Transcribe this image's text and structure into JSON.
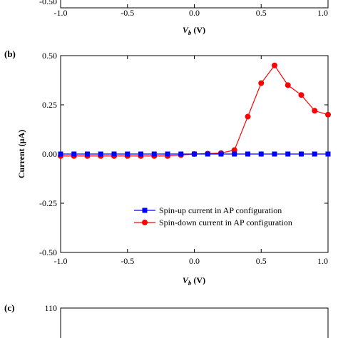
{
  "top_panel": {
    "x_ticks": [
      "-1.0",
      "-0.5",
      "0.0",
      "0.5",
      "1.0"
    ],
    "y_tick_partial": "-0.50",
    "xlabel_symbol": "V",
    "xlabel_sub": "b",
    "xlabel_unit": " (V)"
  },
  "chart_data": {
    "type": "line",
    "panel_label": "(b)",
    "title": "",
    "xlabel_symbol": "V",
    "xlabel_sub": "b",
    "xlabel_unit": " (V)",
    "ylabel": "Current (μA)",
    "xlim": [
      -1.0,
      1.0
    ],
    "ylim": [
      -0.5,
      0.5
    ],
    "x_ticks": [
      "-1.0",
      "-0.5",
      "0.0",
      "0.5",
      "1.0"
    ],
    "y_ticks": [
      "0.50",
      "0.25",
      "0.00",
      "-0.25",
      "-0.50"
    ],
    "y_tick_values": [
      0.5,
      0.25,
      0.0,
      -0.25,
      -0.5
    ],
    "x_tick_values": [
      -1.0,
      -0.5,
      0.0,
      0.5,
      1.0
    ],
    "grid": false,
    "legend_position": "bottom-right",
    "series": [
      {
        "name": "Spin-up current in AP configuration",
        "color": "#0000ff",
        "marker": "square",
        "x": [
          -1.0,
          -0.9,
          -0.8,
          -0.7,
          -0.6,
          -0.5,
          -0.4,
          -0.3,
          -0.2,
          -0.1,
          0.0,
          0.1,
          0.2,
          0.3,
          0.4,
          0.5,
          0.6,
          0.7,
          0.8,
          0.9,
          1.0
        ],
        "y": [
          0,
          0,
          0,
          0,
          0,
          0,
          0,
          0,
          0,
          0,
          0,
          0,
          0,
          0,
          0,
          0,
          0,
          0,
          0,
          0,
          0
        ]
      },
      {
        "name": "Spin-down current in AP configuration",
        "color": "#ff0000",
        "marker": "circle",
        "x": [
          -1.0,
          -0.9,
          -0.8,
          -0.7,
          -0.6,
          -0.5,
          -0.4,
          -0.3,
          -0.2,
          -0.1,
          0.0,
          0.1,
          0.2,
          0.3,
          0.4,
          0.5,
          0.6,
          0.7,
          0.8,
          0.9,
          1.0
        ],
        "y": [
          -0.01,
          -0.01,
          -0.01,
          -0.01,
          -0.01,
          -0.01,
          -0.01,
          -0.01,
          -0.01,
          -0.005,
          0.0,
          0.002,
          0.005,
          0.02,
          0.19,
          0.36,
          0.45,
          0.35,
          0.3,
          0.22,
          0.2
        ]
      }
    ]
  },
  "bottom_panel": {
    "panel_label": "(c)",
    "y_tick_partial": "110"
  }
}
